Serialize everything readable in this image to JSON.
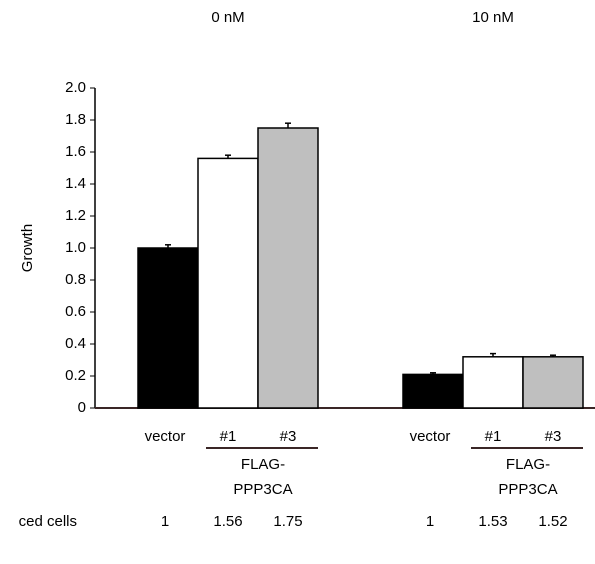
{
  "chart_data": {
    "type": "bar",
    "y_label": "Growth",
    "groups": [
      {
        "title": "0 nM",
        "label": [
          "FLAG-",
          "PPP3CA"
        ]
      },
      {
        "title": "10 nM",
        "label": [
          "FLAG-",
          "PPP3CA"
        ]
      }
    ],
    "categories": [
      "vector",
      "#1",
      "#3",
      "vector",
      "#1",
      "#3"
    ],
    "values": [
      1.0,
      1.56,
      1.75,
      0.21,
      0.32,
      0.32
    ],
    "errors": [
      0.02,
      0.02,
      0.03,
      0.01,
      0.02,
      0.01
    ],
    "colors": [
      "#000000",
      "#ffffff",
      "#bfbfbf",
      "#000000",
      "#ffffff",
      "#bfbfbf"
    ],
    "ylim": [
      0,
      2.0
    ],
    "yticks": [
      0,
      0.2,
      0.4,
      0.6,
      0.8,
      {
        "value": 1.0,
        "label": "1.0"
      },
      1.2,
      1.4,
      1.6,
      1.8,
      {
        "value": 2.0,
        "label": "2.0"
      }
    ],
    "row_label": "ced cells",
    "ratios": [
      1,
      1.56,
      1.75,
      1,
      1.53,
      1.52
    ]
  }
}
